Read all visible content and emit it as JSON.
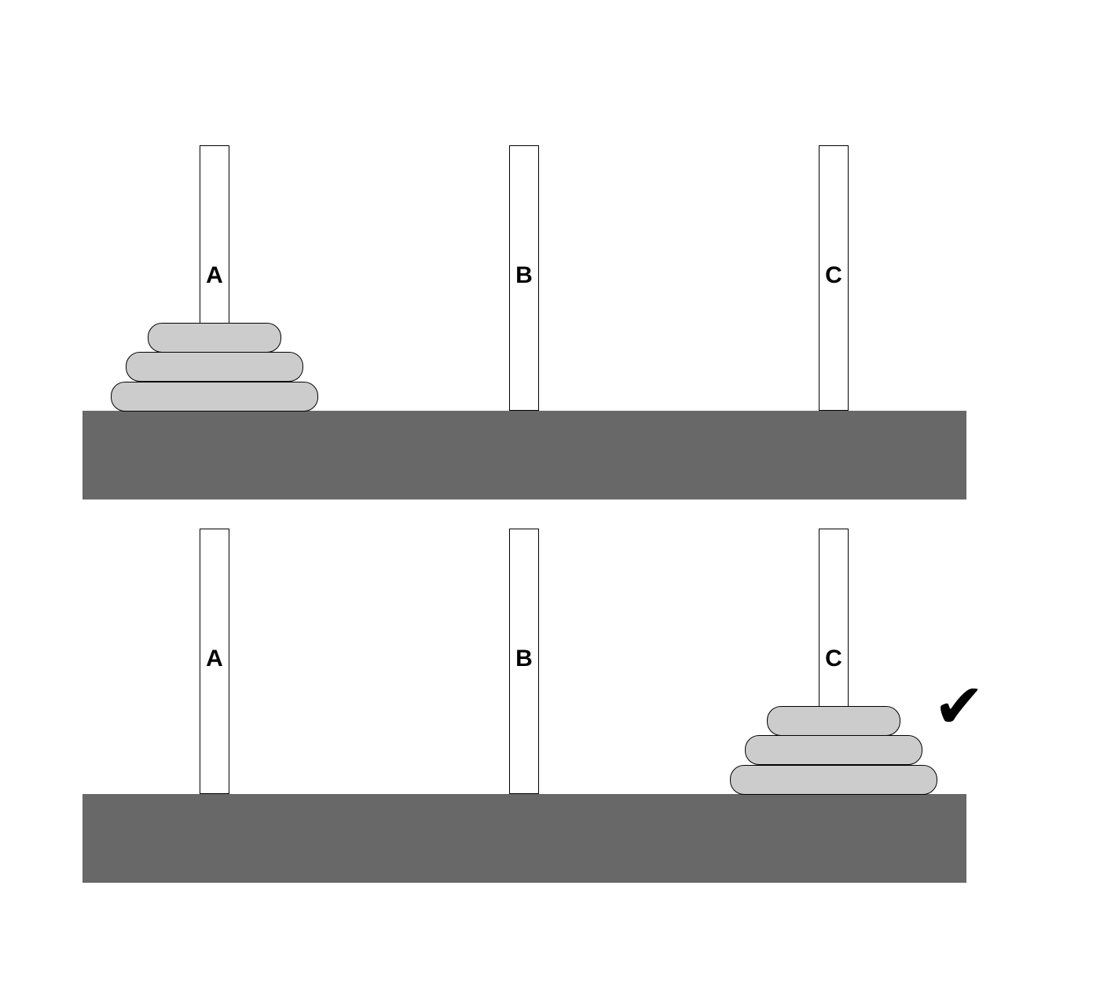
{
  "colors": {
    "background": "#ffffff",
    "base": "#686868",
    "peg_fill": "#ffffff",
    "peg_stroke": "#000000",
    "disk_fill": "#cccccc",
    "disk_stroke": "#000000",
    "check": "#000000"
  },
  "panels": [
    {
      "state": "start",
      "pegs": [
        {
          "label": "A",
          "disks": [
            3,
            2,
            1
          ]
        },
        {
          "label": "B",
          "disks": []
        },
        {
          "label": "C",
          "disks": []
        }
      ]
    },
    {
      "state": "goal",
      "pegs": [
        {
          "label": "A",
          "disks": []
        },
        {
          "label": "B",
          "disks": []
        },
        {
          "label": "C",
          "disks": [
            3,
            2,
            1
          ]
        }
      ],
      "marker_icon": "checkmark-icon",
      "marker_glyph": "✔"
    }
  ]
}
